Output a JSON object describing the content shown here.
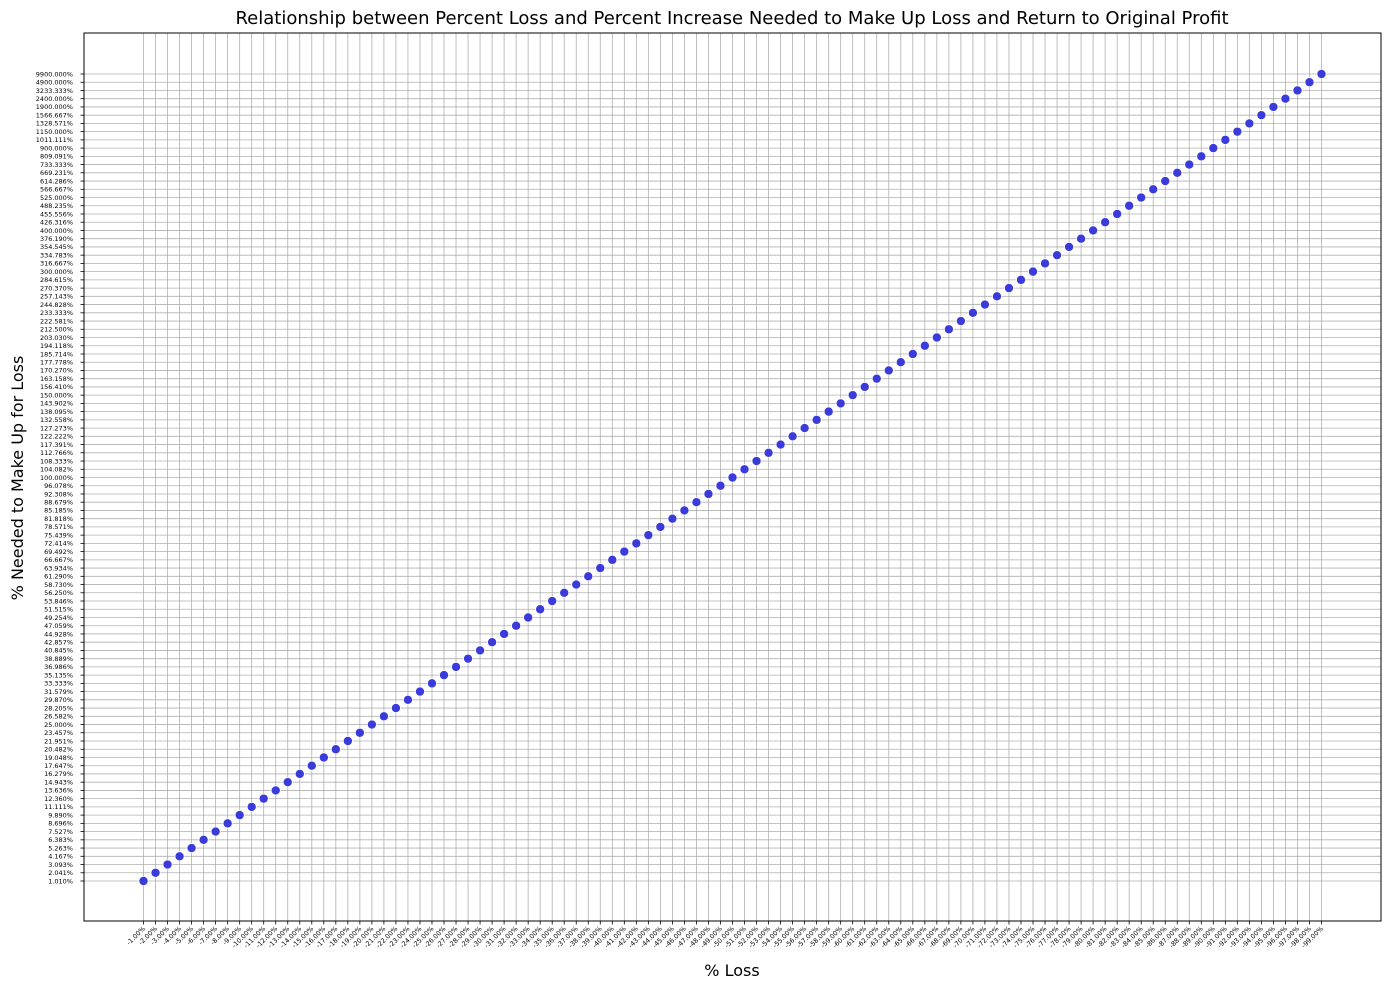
{
  "chart_data": {
    "type": "scatter",
    "title": "Relationship between Percent Loss and Percent Increase Needed to Make Up Loss and Return to Original Profit",
    "xlabel": "% Loss",
    "ylabel": "% Needed to Make Up for Loss",
    "grid": true,
    "marker_color": "#3b3bdb",
    "marker_edge_color": "#ffffff",
    "x": [
      "-1.00%",
      "-2.00%",
      "-3.00%",
      "-4.00%",
      "-5.00%",
      "-6.00%",
      "-7.00%",
      "-8.00%",
      "-9.00%",
      "-10.00%",
      "-11.00%",
      "-12.00%",
      "-13.00%",
      "-14.00%",
      "-15.00%",
      "-16.00%",
      "-17.00%",
      "-18.00%",
      "-19.00%",
      "-20.00%",
      "-21.00%",
      "-22.00%",
      "-23.00%",
      "-24.00%",
      "-25.00%",
      "-26.00%",
      "-27.00%",
      "-28.00%",
      "-29.00%",
      "-30.00%",
      "-31.00%",
      "-32.00%",
      "-33.00%",
      "-34.00%",
      "-35.00%",
      "-36.00%",
      "-37.00%",
      "-38.00%",
      "-39.00%",
      "-40.00%",
      "-41.00%",
      "-42.00%",
      "-43.00%",
      "-44.00%",
      "-45.00%",
      "-46.00%",
      "-47.00%",
      "-48.00%",
      "-49.00%",
      "-50.00%",
      "-51.00%",
      "-52.00%",
      "-53.00%",
      "-54.00%",
      "-55.00%",
      "-56.00%",
      "-57.00%",
      "-58.00%",
      "-59.00%",
      "-60.00%",
      "-61.00%",
      "-62.00%",
      "-63.00%",
      "-64.00%",
      "-65.00%",
      "-66.00%",
      "-67.00%",
      "-68.00%",
      "-69.00%",
      "-70.00%",
      "-71.00%",
      "-72.00%",
      "-73.00%",
      "-74.00%",
      "-75.00%",
      "-76.00%",
      "-77.00%",
      "-78.00%",
      "-79.00%",
      "-80.00%",
      "-81.00%",
      "-82.00%",
      "-83.00%",
      "-84.00%",
      "-85.00%",
      "-86.00%",
      "-87.00%",
      "-88.00%",
      "-89.00%",
      "-90.00%",
      "-91.00%",
      "-92.00%",
      "-93.00%",
      "-94.00%",
      "-95.00%",
      "-96.00%",
      "-97.00%",
      "-98.00%",
      "-99.00%"
    ],
    "y": [
      "1.010%",
      "2.041%",
      "3.093%",
      "4.167%",
      "5.263%",
      "6.383%",
      "7.527%",
      "8.696%",
      "9.890%",
      "11.111%",
      "12.360%",
      "13.636%",
      "14.943%",
      "16.279%",
      "17.647%",
      "19.048%",
      "20.482%",
      "21.951%",
      "23.457%",
      "25.000%",
      "26.582%",
      "28.205%",
      "29.870%",
      "31.579%",
      "33.333%",
      "35.135%",
      "36.986%",
      "38.889%",
      "40.845%",
      "42.857%",
      "44.928%",
      "47.059%",
      "49.254%",
      "51.515%",
      "53.846%",
      "56.250%",
      "58.730%",
      "61.290%",
      "63.934%",
      "66.667%",
      "69.492%",
      "72.414%",
      "75.439%",
      "78.571%",
      "81.818%",
      "85.185%",
      "88.679%",
      "92.308%",
      "96.078%",
      "100.000%",
      "104.082%",
      "108.333%",
      "112.766%",
      "117.391%",
      "122.222%",
      "127.273%",
      "132.558%",
      "138.095%",
      "143.902%",
      "150.000%",
      "156.410%",
      "163.158%",
      "170.270%",
      "177.778%",
      "185.714%",
      "194.118%",
      "203.030%",
      "212.500%",
      "222.581%",
      "233.333%",
      "244.828%",
      "257.143%",
      "270.370%",
      "284.615%",
      "300.000%",
      "316.667%",
      "334.783%",
      "354.545%",
      "376.190%",
      "400.000%",
      "426.316%",
      "455.556%",
      "488.235%",
      "525.000%",
      "566.667%",
      "614.286%",
      "669.231%",
      "733.333%",
      "809.091%",
      "900.000%",
      "1011.111%",
      "1150.000%",
      "1328.571%",
      "1566.667%",
      "1900.000%",
      "2400.000%",
      "3233.333%",
      "4900.000%",
      "9900.000%"
    ]
  }
}
